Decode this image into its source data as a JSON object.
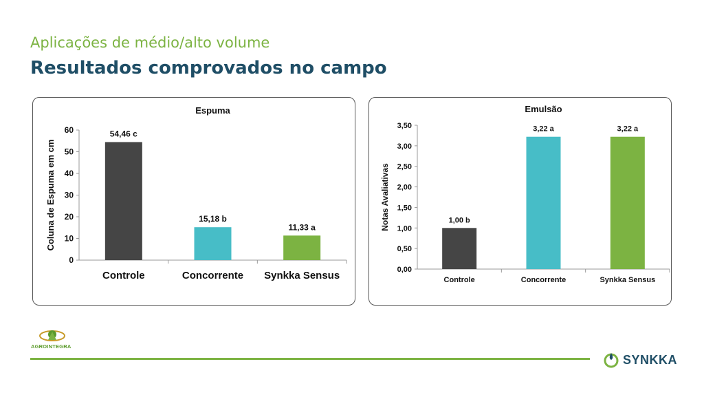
{
  "header": {
    "subtitle": "Aplicações de médio/alto volume",
    "title": "Resultados comprovados no campo"
  },
  "colors": {
    "controle": "#454545",
    "concorrente": "#47bdc7",
    "synkka": "#7cb342",
    "title": "#1f4e66"
  },
  "chart_data": [
    {
      "type": "bar",
      "title": "Espuma",
      "ylabel": "Coluna de Espuma em cm",
      "xlabel": "",
      "categories": [
        "Controle",
        "Concorrente",
        "Synkka Sensus"
      ],
      "values": [
        54.46,
        15.18,
        11.33
      ],
      "data_labels": [
        "54,46 c",
        "15,18 b",
        "11,33 a"
      ],
      "ylim": [
        0,
        60
      ],
      "yticks": [
        "0",
        "10",
        "20",
        "30",
        "40",
        "50",
        "60"
      ],
      "grid": false,
      "legend": "none"
    },
    {
      "type": "bar",
      "title": "Emulsão",
      "ylabel": "Notas Avaliativas",
      "xlabel": "",
      "categories": [
        "Controle",
        "Concorrente",
        "Synkka Sensus"
      ],
      "values": [
        1.0,
        3.22,
        3.22
      ],
      "data_labels": [
        "1,00 b",
        "3,22 a",
        "3,22 a"
      ],
      "ylim": [
        0,
        3.5
      ],
      "yticks": [
        "0,00",
        "0,50",
        "1,00",
        "1,50",
        "2,00",
        "2,50",
        "3,00",
        "3,50"
      ],
      "grid": false,
      "legend": "none"
    }
  ],
  "footer": {
    "agro_logo_text": "AGROINTEGRA",
    "brand_text": "SYNKKA"
  }
}
